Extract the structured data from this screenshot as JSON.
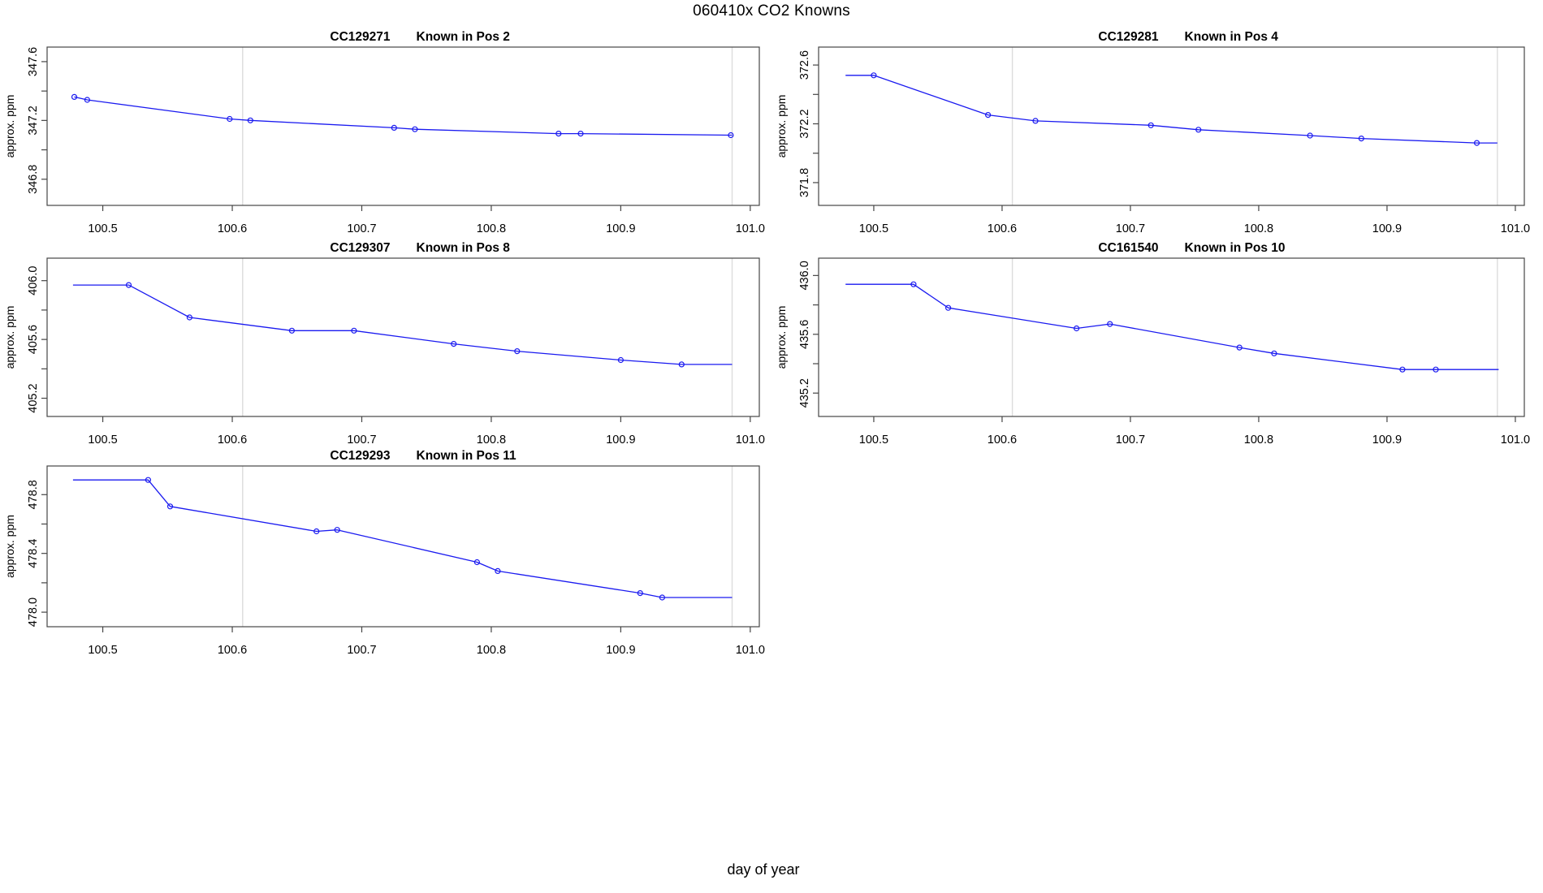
{
  "figure": {
    "title": "060410x   CO2 Knowns",
    "xlabel": "day of year"
  },
  "chart_data": {
    "type": "line",
    "title": "060410x   CO2 Knowns",
    "xlabel": "day of year",
    "ylabel": "approx. ppm",
    "xlim": [
      100.457,
      101.007
    ],
    "xticks": [
      100.5,
      100.6,
      100.7,
      100.8,
      100.9,
      101.0
    ],
    "xtick_labels": [
      "100.5",
      "100.6",
      "100.7",
      "100.8",
      "100.9",
      "101.0"
    ],
    "grid_x": [
      100.608,
      100.986
    ],
    "grid": "vertical-gridlines-only",
    "series_color": "#1a1af0",
    "grid_color": "#dcdcdc",
    "axis_color": "#454545",
    "plots": [
      {
        "id": "CC129271",
        "pos_label": "Known in Pos 2",
        "ylabel": "approx. ppm",
        "col": 0,
        "row": 0,
        "ylim": [
          346.622,
          347.699
        ],
        "yticks": [
          347.6,
          347.4,
          347.2,
          347.0,
          346.8
        ],
        "ytick_labels": [
          "347.6",
          "",
          "347.2",
          "",
          "346.8"
        ],
        "lead_x": null,
        "tail_x": 100.986,
        "x": [
          100.478,
          100.488,
          100.598,
          100.614,
          100.725,
          100.741,
          100.852,
          100.869,
          100.985
        ],
        "y": [
          347.36,
          347.34,
          347.21,
          347.2,
          347.15,
          347.14,
          347.11,
          347.11,
          347.1
        ]
      },
      {
        "id": "CC129281",
        "pos_label": "Known in Pos 4",
        "ylabel": "approx. ppm",
        "col": 1,
        "row": 0,
        "ylim": [
          371.645,
          372.722
        ],
        "yticks": [
          372.6,
          372.4,
          372.2,
          372.0,
          371.8
        ],
        "ytick_labels": [
          "372.6",
          "",
          "372.2",
          "",
          "371.8"
        ],
        "lead_x": 100.478,
        "tail_x": 100.986,
        "x": [
          100.5,
          100.589,
          100.626,
          100.716,
          100.753,
          100.84,
          100.88,
          100.97
        ],
        "y": [
          372.53,
          372.26,
          372.22,
          372.19,
          372.16,
          372.12,
          372.1,
          372.07
        ]
      },
      {
        "id": "CC129307",
        "pos_label": "Known in Pos 8",
        "ylabel": "approx. ppm",
        "col": 0,
        "row": 1,
        "ylim": [
          405.076,
          406.153
        ],
        "yticks": [
          406.0,
          405.8,
          405.6,
          405.4,
          405.2
        ],
        "ytick_labels": [
          "406.0",
          "",
          "405.6",
          "",
          "405.2"
        ],
        "lead_x": 100.477,
        "tail_x": 100.986,
        "x": [
          100.52,
          100.567,
          100.646,
          100.694,
          100.771,
          100.82,
          100.9,
          100.947
        ],
        "y": [
          405.97,
          405.75,
          405.66,
          405.66,
          405.57,
          405.52,
          405.46,
          405.43
        ]
      },
      {
        "id": "CC161540",
        "pos_label": "Known in Pos 10",
        "ylabel": "approx. ppm",
        "col": 1,
        "row": 1,
        "ylim": [
          435.041,
          436.118
        ],
        "yticks": [
          436.0,
          435.8,
          435.6,
          435.4,
          435.2
        ],
        "ytick_labels": [
          "436.0",
          "",
          "435.6",
          "",
          "435.2"
        ],
        "lead_x": 100.478,
        "tail_x": 100.987,
        "x": [
          100.531,
          100.558,
          100.658,
          100.684,
          100.785,
          100.812,
          100.912,
          100.938
        ],
        "y": [
          435.94,
          435.78,
          435.64,
          435.67,
          435.51,
          435.47,
          435.36,
          435.36
        ]
      },
      {
        "id": "CC129293",
        "pos_label": "Known in Pos 11",
        "ylabel": "approx. ppm",
        "col": 0,
        "row": 2,
        "ylim": [
          477.901,
          478.995
        ],
        "yticks": [
          478.8,
          478.6,
          478.4,
          478.2,
          478.0
        ],
        "ytick_labels": [
          "478.8",
          "",
          "478.4",
          "",
          "478.0"
        ],
        "lead_x": 100.477,
        "tail_x": 100.986,
        "x": [
          100.535,
          100.552,
          100.665,
          100.681,
          100.789,
          100.805,
          100.915,
          100.932
        ],
        "y": [
          478.9,
          478.72,
          478.55,
          478.56,
          478.34,
          478.28,
          478.13,
          478.1
        ]
      }
    ]
  }
}
